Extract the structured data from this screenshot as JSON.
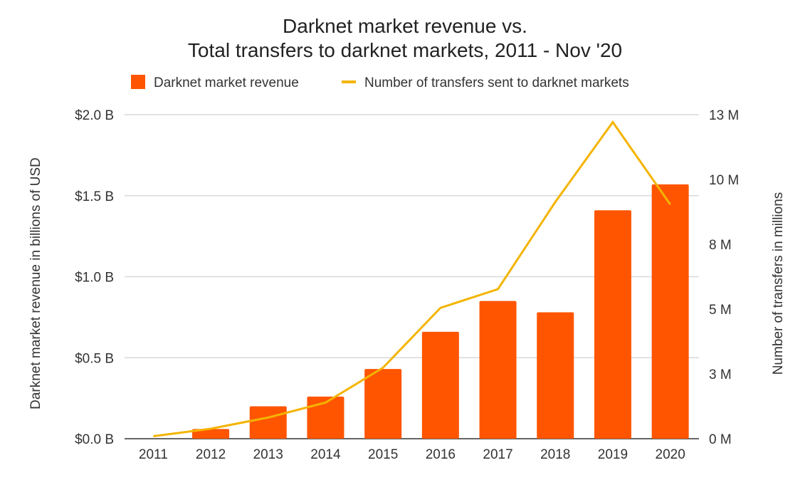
{
  "chart_data": {
    "type": "bar+line",
    "title_lines": [
      "Darknet market revenue vs.",
      "Total transfers to darknet markets, 2011 - Nov '20"
    ],
    "categories": [
      "2011",
      "2012",
      "2013",
      "2014",
      "2015",
      "2016",
      "2017",
      "2018",
      "2019",
      "2020"
    ],
    "series": [
      {
        "name": "Darknet market revenue",
        "type": "bar",
        "axis": "left",
        "color": "#FF5500",
        "values": [
          0.0,
          0.06,
          0.2,
          0.26,
          0.43,
          0.66,
          0.85,
          0.78,
          1.41,
          1.57
        ]
      },
      {
        "name": "Number of transfers sent to darknet markets",
        "type": "line",
        "axis": "right",
        "color": "#F4B400",
        "values": [
          0.1,
          0.4,
          0.85,
          1.45,
          2.85,
          5.25,
          6.0,
          9.5,
          12.7,
          9.4
        ]
      }
    ],
    "left_axis": {
      "label": "Darknet market revenue in billions of USD",
      "range": [
        0,
        2.0
      ],
      "ticks": [
        0,
        0.5,
        1.0,
        1.5,
        2.0
      ],
      "tick_labels": [
        "$0.0 B",
        "$0.5 B",
        "$1.0 B",
        "$1.5 B",
        "$2.0 B"
      ]
    },
    "right_axis": {
      "label": "Number of transfers in millions",
      "range": [
        0,
        13
      ],
      "tick_labels": [
        "0 M",
        "3 M",
        "5 M",
        "8 M",
        "10 M",
        "13 M"
      ]
    },
    "grid": true,
    "legend_placement": "top"
  }
}
